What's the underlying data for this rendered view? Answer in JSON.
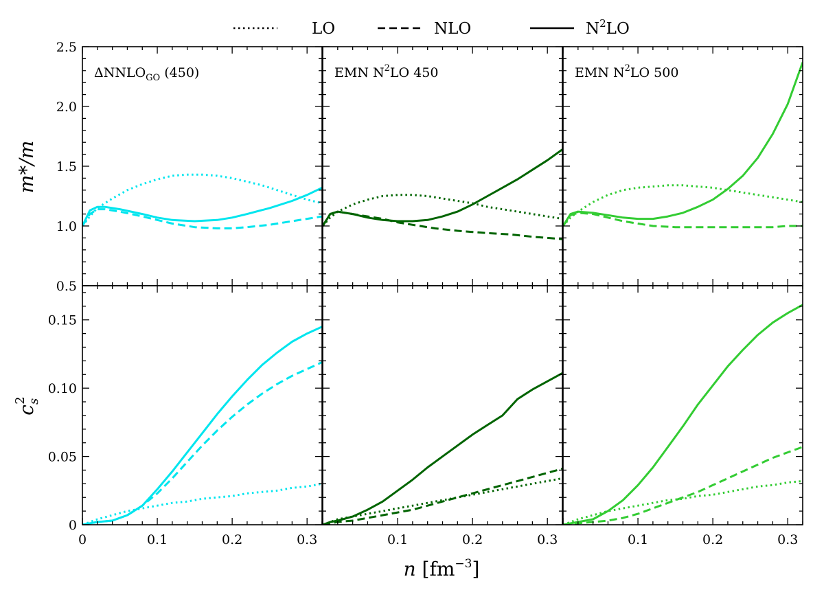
{
  "chart_data": {
    "type": "line",
    "layout": "2 rows x 3 columns, shared x axis, shared y axis per row",
    "xlabel": "n [fm⁻³]",
    "xlim": [
      0,
      0.32
    ],
    "x_ticks": [
      "0",
      "0.1",
      "0.2",
      "0.3"
    ],
    "legend": {
      "placement": "top-center",
      "entries": [
        {
          "label": "LO",
          "style": "dotted"
        },
        {
          "label": "NLO",
          "style": "dashed"
        },
        {
          "label": "N²LO",
          "style": "solid"
        }
      ]
    },
    "rows": [
      {
        "ylabel": "m*/m",
        "ylim": [
          0.5,
          2.5
        ],
        "y_ticks": [
          "0.5",
          "1.0",
          "1.5",
          "2.0",
          "2.5"
        ]
      },
      {
        "ylabel": "cₛ²",
        "ylim": [
          0,
          0.175
        ],
        "y_ticks": [
          "0",
          "0.05",
          "0.10",
          "0.15"
        ]
      }
    ],
    "panels": [
      {
        "label": "ΔNNLO",
        "label_sub": "GO",
        "label_suffix": " (450)",
        "color": "#00e5ee",
        "effective_mass": {
          "LO": {
            "x": [
              0,
              0.01,
              0.02,
              0.04,
              0.06,
              0.08,
              0.1,
              0.12,
              0.14,
              0.16,
              0.18,
              0.2,
              0.22,
              0.24,
              0.26,
              0.28,
              0.3,
              0.32
            ],
            "y": [
              1.0,
              1.08,
              1.15,
              1.23,
              1.3,
              1.35,
              1.39,
              1.42,
              1.43,
              1.43,
              1.42,
              1.4,
              1.37,
              1.34,
              1.3,
              1.26,
              1.22,
              1.19
            ]
          },
          "NLO": {
            "x": [
              0,
              0.01,
              0.02,
              0.03,
              0.05,
              0.08,
              0.1,
              0.12,
              0.15,
              0.18,
              0.2,
              0.22,
              0.25,
              0.28,
              0.3,
              0.32
            ],
            "y": [
              1.0,
              1.1,
              1.14,
              1.14,
              1.12,
              1.08,
              1.05,
              1.02,
              0.99,
              0.98,
              0.98,
              0.99,
              1.01,
              1.04,
              1.06,
              1.08
            ]
          },
          "N2LO": {
            "x": [
              0,
              0.01,
              0.02,
              0.03,
              0.05,
              0.08,
              0.1,
              0.12,
              0.15,
              0.18,
              0.2,
              0.22,
              0.25,
              0.28,
              0.3,
              0.32
            ],
            "y": [
              1.0,
              1.13,
              1.16,
              1.16,
              1.14,
              1.1,
              1.07,
              1.05,
              1.04,
              1.05,
              1.07,
              1.1,
              1.15,
              1.21,
              1.26,
              1.32
            ]
          }
        },
        "speed_of_sound": {
          "LO": {
            "x": [
              0,
              0.02,
              0.04,
              0.06,
              0.08,
              0.1,
              0.12,
              0.14,
              0.16,
              0.18,
              0.2,
              0.22,
              0.24,
              0.26,
              0.28,
              0.3,
              0.32
            ],
            "y": [
              0,
              0.004,
              0.007,
              0.01,
              0.012,
              0.014,
              0.016,
              0.017,
              0.019,
              0.02,
              0.021,
              0.023,
              0.024,
              0.025,
              0.027,
              0.028,
              0.03
            ]
          },
          "NLO": {
            "x": [
              0,
              0.01,
              0.02,
              0.04,
              0.06,
              0.08,
              0.1,
              0.12,
              0.14,
              0.16,
              0.18,
              0.2,
              0.22,
              0.24,
              0.26,
              0.28,
              0.3,
              0.32
            ],
            "y": [
              0,
              0.001,
              0.002,
              0.003,
              0.007,
              0.014,
              0.023,
              0.034,
              0.046,
              0.058,
              0.069,
              0.079,
              0.088,
              0.096,
              0.103,
              0.109,
              0.114,
              0.119
            ]
          },
          "N2LO": {
            "x": [
              0,
              0.01,
              0.02,
              0.04,
              0.06,
              0.08,
              0.1,
              0.12,
              0.14,
              0.16,
              0.18,
              0.2,
              0.22,
              0.24,
              0.26,
              0.28,
              0.3,
              0.32
            ],
            "y": [
              0,
              0.001,
              0.002,
              0.003,
              0.007,
              0.014,
              0.026,
              0.039,
              0.053,
              0.067,
              0.081,
              0.094,
              0.106,
              0.117,
              0.126,
              0.134,
              0.14,
              0.145
            ]
          }
        }
      },
      {
        "label": "EMN N²LO 450",
        "label_sub": "",
        "label_suffix": "",
        "color": "#006400",
        "effective_mass": {
          "LO": {
            "x": [
              0,
              0.01,
              0.02,
              0.04,
              0.06,
              0.08,
              0.1,
              0.12,
              0.14,
              0.16,
              0.18,
              0.2,
              0.22,
              0.24,
              0.26,
              0.28,
              0.3,
              0.32
            ],
            "y": [
              1.0,
              1.07,
              1.12,
              1.18,
              1.22,
              1.25,
              1.26,
              1.26,
              1.25,
              1.23,
              1.21,
              1.19,
              1.16,
              1.14,
              1.12,
              1.1,
              1.08,
              1.06
            ]
          },
          "NLO": {
            "x": [
              0,
              0.01,
              0.02,
              0.04,
              0.06,
              0.08,
              0.1,
              0.12,
              0.15,
              0.18,
              0.2,
              0.22,
              0.25,
              0.28,
              0.3,
              0.32
            ],
            "y": [
              1.0,
              1.1,
              1.12,
              1.1,
              1.08,
              1.06,
              1.03,
              1.01,
              0.98,
              0.96,
              0.95,
              0.94,
              0.93,
              0.91,
              0.9,
              0.89
            ]
          },
          "N2LO": {
            "x": [
              0,
              0.01,
              0.02,
              0.04,
              0.06,
              0.08,
              0.1,
              0.12,
              0.14,
              0.16,
              0.18,
              0.2,
              0.22,
              0.24,
              0.26,
              0.28,
              0.3,
              0.32
            ],
            "y": [
              1.0,
              1.1,
              1.12,
              1.1,
              1.07,
              1.05,
              1.04,
              1.04,
              1.05,
              1.08,
              1.12,
              1.18,
              1.25,
              1.32,
              1.39,
              1.47,
              1.55,
              1.64
            ]
          }
        },
        "speed_of_sound": {
          "LO": {
            "x": [
              0,
              0.02,
              0.04,
              0.06,
              0.08,
              0.1,
              0.12,
              0.14,
              0.16,
              0.18,
              0.2,
              0.22,
              0.24,
              0.26,
              0.28,
              0.3,
              0.32
            ],
            "y": [
              0,
              0.004,
              0.006,
              0.008,
              0.01,
              0.012,
              0.014,
              0.016,
              0.018,
              0.02,
              0.022,
              0.024,
              0.026,
              0.028,
              0.03,
              0.032,
              0.034
            ]
          },
          "NLO": {
            "x": [
              0,
              0.02,
              0.04,
              0.06,
              0.08,
              0.1,
              0.12,
              0.14,
              0.16,
              0.18,
              0.2,
              0.22,
              0.24,
              0.26,
              0.28,
              0.3,
              0.32
            ],
            "y": [
              0,
              0.002,
              0.003,
              0.005,
              0.007,
              0.009,
              0.011,
              0.014,
              0.017,
              0.02,
              0.023,
              0.026,
              0.029,
              0.032,
              0.035,
              0.038,
              0.041
            ]
          },
          "N2LO": {
            "x": [
              0,
              0.01,
              0.02,
              0.04,
              0.06,
              0.08,
              0.1,
              0.12,
              0.14,
              0.16,
              0.18,
              0.2,
              0.22,
              0.24,
              0.26,
              0.28,
              0.3,
              0.32
            ],
            "y": [
              0,
              0.002,
              0.003,
              0.006,
              0.011,
              0.017,
              0.025,
              0.033,
              0.042,
              0.05,
              0.058,
              0.066,
              0.073,
              0.08,
              0.092,
              0.099,
              0.105,
              0.111
            ]
          }
        }
      },
      {
        "label": "EMN N²LO 500",
        "label_sub": "",
        "label_suffix": "",
        "color": "#33cc33",
        "effective_mass": {
          "LO": {
            "x": [
              0,
              0.01,
              0.02,
              0.04,
              0.06,
              0.08,
              0.1,
              0.12,
              0.14,
              0.16,
              0.18,
              0.2,
              0.22,
              0.24,
              0.26,
              0.28,
              0.3,
              0.32
            ],
            "y": [
              1.0,
              1.07,
              1.12,
              1.2,
              1.26,
              1.3,
              1.32,
              1.33,
              1.34,
              1.34,
              1.33,
              1.32,
              1.3,
              1.28,
              1.26,
              1.24,
              1.22,
              1.2
            ]
          },
          "NLO": {
            "x": [
              0,
              0.01,
              0.02,
              0.04,
              0.06,
              0.08,
              0.1,
              0.12,
              0.15,
              0.18,
              0.2,
              0.22,
              0.25,
              0.28,
              0.3,
              0.32
            ],
            "y": [
              1.0,
              1.09,
              1.11,
              1.1,
              1.07,
              1.04,
              1.02,
              1.0,
              0.99,
              0.99,
              0.99,
              0.99,
              0.99,
              0.99,
              1.0,
              1.0
            ]
          },
          "N2LO": {
            "x": [
              0,
              0.01,
              0.02,
              0.04,
              0.06,
              0.08,
              0.1,
              0.12,
              0.14,
              0.16,
              0.18,
              0.2,
              0.22,
              0.24,
              0.26,
              0.28,
              0.3,
              0.32
            ],
            "y": [
              1.0,
              1.1,
              1.12,
              1.11,
              1.09,
              1.07,
              1.06,
              1.06,
              1.08,
              1.11,
              1.16,
              1.22,
              1.31,
              1.42,
              1.57,
              1.77,
              2.02,
              2.37
            ]
          }
        },
        "speed_of_sound": {
          "LO": {
            "x": [
              0,
              0.02,
              0.04,
              0.06,
              0.08,
              0.1,
              0.12,
              0.14,
              0.16,
              0.18,
              0.2,
              0.22,
              0.24,
              0.26,
              0.28,
              0.3,
              0.32
            ],
            "y": [
              0,
              0.004,
              0.007,
              0.01,
              0.012,
              0.014,
              0.016,
              0.018,
              0.019,
              0.021,
              0.022,
              0.024,
              0.026,
              0.028,
              0.029,
              0.031,
              0.032
            ]
          },
          "NLO": {
            "x": [
              0,
              0.02,
              0.04,
              0.06,
              0.08,
              0.1,
              0.12,
              0.14,
              0.16,
              0.18,
              0.2,
              0.22,
              0.24,
              0.26,
              0.28,
              0.3,
              0.32
            ],
            "y": [
              0,
              0.001,
              0.002,
              0.003,
              0.005,
              0.008,
              0.012,
              0.016,
              0.02,
              0.024,
              0.029,
              0.034,
              0.039,
              0.044,
              0.049,
              0.053,
              0.057
            ]
          },
          "N2LO": {
            "x": [
              0,
              0.01,
              0.02,
              0.04,
              0.06,
              0.08,
              0.1,
              0.12,
              0.14,
              0.16,
              0.18,
              0.2,
              0.22,
              0.24,
              0.26,
              0.28,
              0.3,
              0.32
            ],
            "y": [
              0,
              0.001,
              0.002,
              0.004,
              0.01,
              0.018,
              0.029,
              0.042,
              0.057,
              0.072,
              0.088,
              0.102,
              0.116,
              0.128,
              0.139,
              0.148,
              0.155,
              0.161
            ]
          }
        }
      }
    ]
  }
}
